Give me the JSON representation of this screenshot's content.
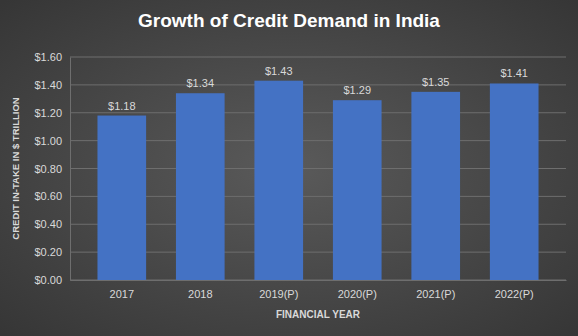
{
  "chart_data": {
    "type": "bar",
    "title": "Growth of Credit Demand in India",
    "x_label": "FINANCIAL YEAR",
    "y_label": "CREDIT IN-TAKE IN $ TRILLION",
    "categories": [
      "2017",
      "2018",
      "2019(P)",
      "2020(P)",
      "2021(P)",
      "2022(P)"
    ],
    "values": [
      1.18,
      1.34,
      1.43,
      1.29,
      1.35,
      1.41
    ],
    "value_labels": [
      "$1.18",
      "$1.34",
      "$1.43",
      "$1.29",
      "$1.35",
      "$1.41"
    ],
    "color": "#4472c4",
    "ylim": [
      0,
      1.6
    ],
    "yticks": [
      {
        "value": 0,
        "label": "$0.00"
      },
      {
        "value": 0.2,
        "label": "$0.20"
      },
      {
        "value": 0.4,
        "label": "$0.40"
      },
      {
        "value": 0.6,
        "label": "$0.60"
      },
      {
        "value": 0.8,
        "label": "$0.80"
      },
      {
        "value": 1.0,
        "label": "$1.00"
      },
      {
        "value": 1.2,
        "label": "$1.20"
      },
      {
        "value": 1.4,
        "label": "$1.40"
      },
      {
        "value": 1.6,
        "label": "$1.60"
      }
    ],
    "grid": true,
    "data_labels": true
  }
}
